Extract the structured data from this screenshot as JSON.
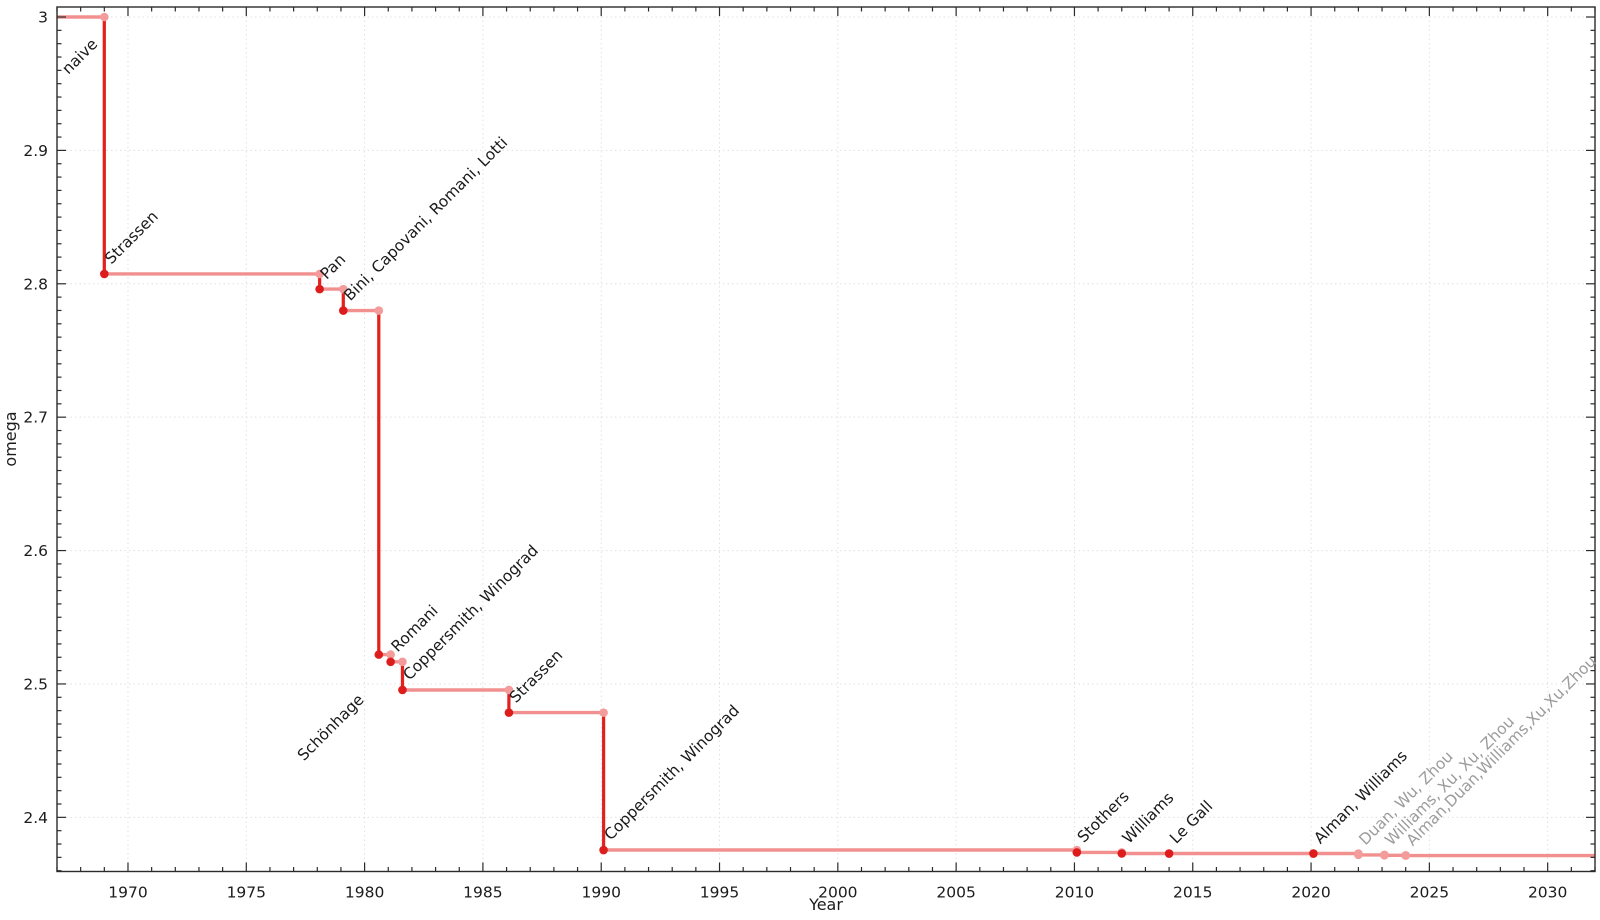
{
  "chart_data": {
    "type": "line",
    "subtype": "step",
    "title": "",
    "xlabel": "Year",
    "ylabel": "omega",
    "xlim": [
      1967,
      2032
    ],
    "ylim": [
      2.3594,
      3.0075
    ],
    "grid": true,
    "legend_position": "none",
    "x_major_ticks": [
      1970,
      1975,
      1980,
      1985,
      1990,
      1995,
      2000,
      2005,
      2010,
      2015,
      2020,
      2025,
      2030
    ],
    "x_minor_step": 1,
    "y_major_ticks": [
      {
        "value": 3.0,
        "label": "3"
      },
      {
        "value": 2.9,
        "label": "2.9"
      },
      {
        "value": 2.8,
        "label": "2.8"
      },
      {
        "value": 2.7,
        "label": "2.7"
      },
      {
        "value": 2.6,
        "label": "2.6"
      },
      {
        "value": 2.5,
        "label": "2.5"
      },
      {
        "value": 2.4,
        "label": "2.4"
      }
    ],
    "y_minor_step": 0.01,
    "initial": {
      "omega": 3.0,
      "label": "naive",
      "label_anchor": "end",
      "label_offset": [
        -6,
        28
      ]
    },
    "points": [
      {
        "year": 1969.0,
        "omega": 2.8074,
        "label": "Strassen",
        "muted": false
      },
      {
        "year": 1978.1,
        "omega": 2.796,
        "label": "Pan",
        "muted": false
      },
      {
        "year": 1979.1,
        "omega": 2.7799,
        "label": "Bini, Capovani, Romani, Lotti",
        "muted": false
      },
      {
        "year": 1980.6,
        "omega": 2.522,
        "label": "Schönhage",
        "muted": false,
        "label_anchor": "end",
        "label_offset": [
          -14,
          46
        ]
      },
      {
        "year": 1981.1,
        "omega": 2.5166,
        "label": "Romani",
        "muted": false
      },
      {
        "year": 1981.6,
        "omega": 2.4955,
        "label": "Coppersmith, Winograd",
        "muted": false
      },
      {
        "year": 1986.1,
        "omega": 2.4785,
        "label": "Strassen",
        "muted": false
      },
      {
        "year": 1990.1,
        "omega": 2.3755,
        "label": "Coppersmith, Winograd",
        "muted": false
      },
      {
        "year": 2010.1,
        "omega": 2.3737,
        "label": "Stothers",
        "muted": false
      },
      {
        "year": 2012.0,
        "omega": 2.3729,
        "label": "Williams",
        "muted": false
      },
      {
        "year": 2014.0,
        "omega": 2.3728639,
        "label": "Le Gall",
        "muted": false
      },
      {
        "year": 2020.1,
        "omega": 2.3728596,
        "label": "Alman, Williams",
        "muted": false
      },
      {
        "year": 2022.0,
        "omega": 2.37188,
        "label": "Duan, Wu, Zhou",
        "muted": true
      },
      {
        "year": 2023.1,
        "omega": 2.371552,
        "label": "Williams, Xu, Xu, Zhou",
        "muted": true
      },
      {
        "year": 2024.0,
        "omega": 2.371339,
        "label": "Alman,Duan,Williams,Xu,Xu,Zhou",
        "muted": true
      }
    ],
    "colors": {
      "line_light": "#F29090",
      "line_dark": "#E3201B",
      "marker_dark": "#DC1D1C",
      "marker_light": "#F39C9B",
      "label_normal": "#1A1A1A",
      "label_muted": "#9C9C9C",
      "grid": "#E0E0E0",
      "spine": "#2B2B2B",
      "tick_label": "#1C1C1C"
    }
  }
}
